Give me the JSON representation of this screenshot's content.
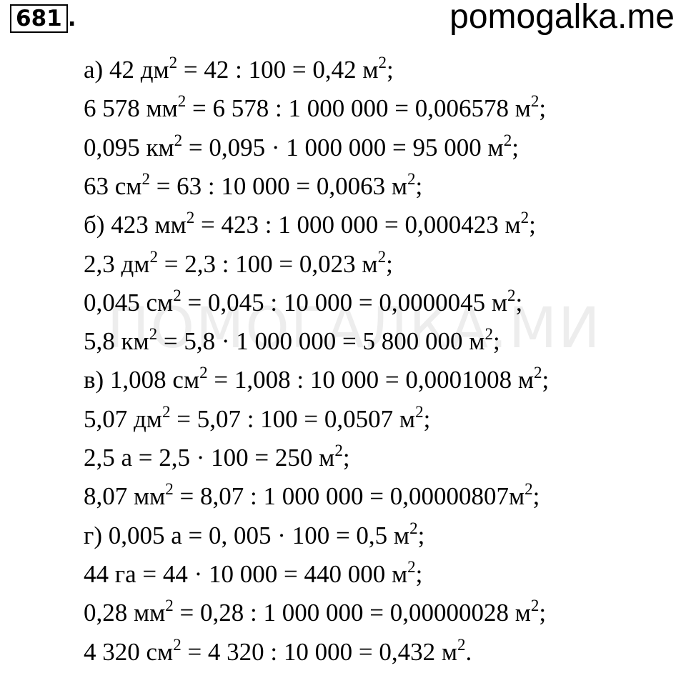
{
  "header": {
    "number": "681",
    "number_suffix": ".",
    "site": "pomogalka.me"
  },
  "watermark": "ПОМОГАЛКА.МИ",
  "lines": [
    [
      "а) 42 дм",
      "2",
      " = 42 : 100 = 0,42 м",
      "2",
      ";"
    ],
    [
      "6 578 мм",
      "2",
      " = 6 578 : 1 000 000 = 0,006578 м",
      "2",
      ";"
    ],
    [
      "0,095 км",
      "2",
      " = 0,095 · 1 000 000 = 95 000 м",
      "2",
      ";"
    ],
    [
      "63 см",
      "2",
      " = 63 : 10 000 = 0,0063 м",
      "2",
      ";"
    ],
    [
      "б) 423 мм",
      "2",
      " = 423 : 1 000 000 = 0,000423 м",
      "2",
      ";"
    ],
    [
      "2,3 дм",
      "2",
      " = 2,3 : 100 = 0,023 м",
      "2",
      ";"
    ],
    [
      "0,045 см",
      "2",
      " = 0,045 : 10 000 = 0,0000045 м",
      "2",
      ";"
    ],
    [
      "5,8 км",
      "2",
      " = 5,8 · 1 000 000 = 5 800 000 м",
      "2",
      ";"
    ],
    [
      "в) 1,008 см",
      "2",
      " = 1,008 : 10 000 = 0,0001008 м",
      "2",
      ";"
    ],
    [
      "5,07 дм",
      "2",
      " = 5,07 : 100 = 0,0507 м",
      "2",
      ";"
    ],
    [
      "2,5 а = 2,5 · 100 = 250 м",
      "2",
      ";"
    ],
    [
      "8,07 мм",
      "2",
      " = 8,07 : 1 000 000 = 0,00000807м",
      "2",
      ";"
    ],
    [
      "г) 0,005 а = 0, 005 · 100 = 0,5 м",
      "2",
      ";"
    ],
    [
      "44 га = 44 · 10 000 = 440 000 м",
      "2",
      ";"
    ],
    [
      "0,28 мм",
      "2",
      " = 0,28 : 1 000 000 = 0,00000028 м",
      "2",
      ";"
    ],
    [
      "4 320 см",
      "2",
      " = 4 320 : 10 000 = 0,432 м",
      "2",
      "."
    ]
  ]
}
